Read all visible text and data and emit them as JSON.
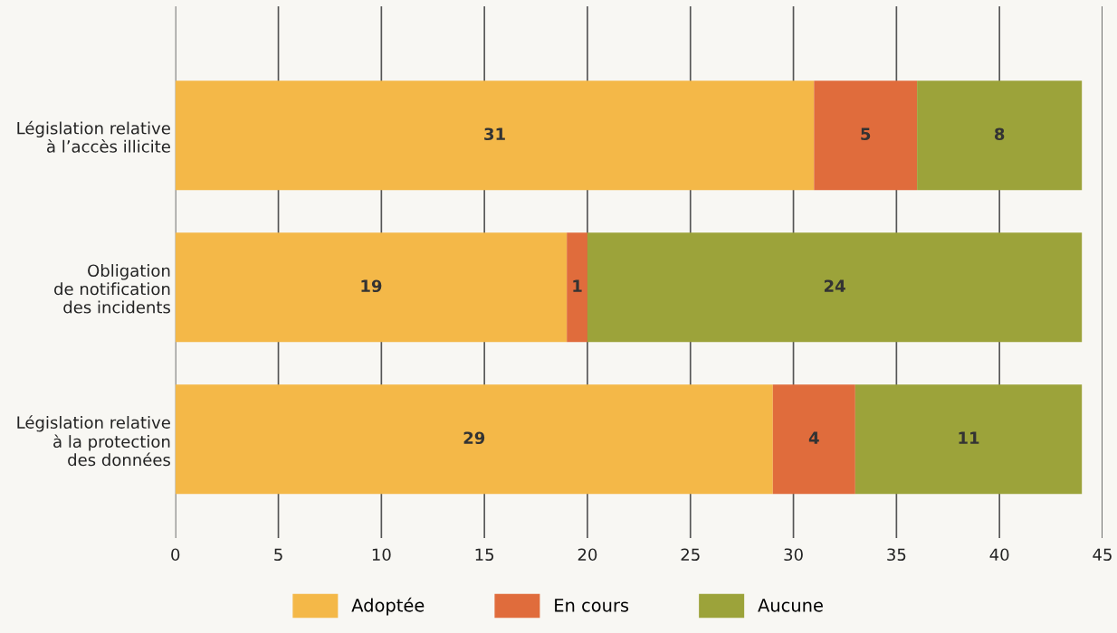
{
  "chart_data": {
    "type": "bar",
    "orientation": "horizontal",
    "stacked": true,
    "categories": [
      "Législation relative\nà l’accès illicite",
      "Obligation\nde notification\ndes incidents",
      "Législation relative\nà la protection\ndes données"
    ],
    "series": [
      {
        "name": "Adoptée",
        "color": "#f4b848",
        "values": [
          31,
          19,
          29
        ]
      },
      {
        "name": "En cours",
        "color": "#e06c3c",
        "values": [
          5,
          1,
          4
        ]
      },
      {
        "name": "Aucune",
        "color": "#9ca33a",
        "values": [
          8,
          24,
          11
        ]
      }
    ],
    "xlim": [
      0,
      45
    ],
    "xticks": [
      0,
      5,
      10,
      15,
      20,
      25,
      30,
      35,
      40,
      45
    ],
    "grid": "x",
    "legend": "bottom",
    "data_labels": true
  }
}
